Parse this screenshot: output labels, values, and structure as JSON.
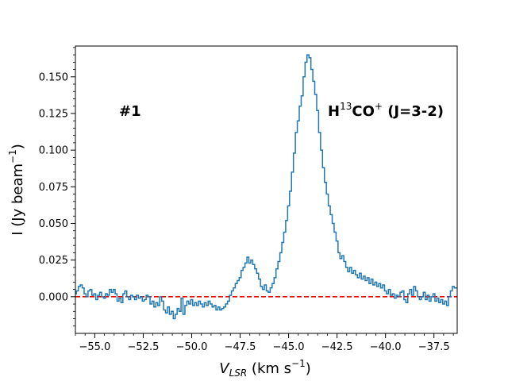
{
  "chart_data": {
    "type": "line",
    "title": "",
    "xlabel": {
      "main": "V",
      "sub": "LSR",
      "rest": " (km s",
      "sup": "−1",
      "end": ")"
    },
    "ylabel": {
      "main": "I (Jy beam",
      "sup": "−1",
      "end": ")"
    },
    "xlim": [
      -56.0,
      -36.3
    ],
    "ylim": [
      -0.025,
      0.171
    ],
    "x_ticks": [
      -55.0,
      -52.5,
      -50.0,
      -47.5,
      -45.0,
      -42.5,
      -40.0,
      -37.5
    ],
    "x_tick_labels": [
      "−55.0",
      "−52.5",
      "−50.0",
      "−47.5",
      "−45.0",
      "−42.5",
      "−40.0",
      "−37.5"
    ],
    "y_ticks": [
      0.0,
      0.025,
      0.05,
      0.075,
      0.1,
      0.125,
      0.15
    ],
    "y_tick_labels": [
      "0.000",
      "0.025",
      "0.050",
      "0.075",
      "0.100",
      "0.125",
      "0.150"
    ],
    "grid": false,
    "annotations": [
      {
        "id": "source",
        "text": "#1"
      },
      {
        "id": "line",
        "main": "H",
        "sup": "13",
        "mid": "CO",
        "sup2": "+",
        "end": " (J=3-2)"
      }
    ],
    "baseline": {
      "y": 0.0,
      "color": "#ff0000",
      "style": "dashed"
    },
    "series": [
      {
        "color": "#1f77b4",
        "style": "steps",
        "points": [
          [
            -56.0,
            0.002
          ],
          [
            -55.9,
            0.004
          ],
          [
            -55.8,
            0.007
          ],
          [
            -55.7,
            0.008
          ],
          [
            -55.6,
            0.006
          ],
          [
            -55.5,
            0.002
          ],
          [
            -55.4,
            0.0
          ],
          [
            -55.3,
            0.004
          ],
          [
            -55.2,
            0.005
          ],
          [
            -55.1,
            0.001
          ],
          [
            -55.0,
            0.002
          ],
          [
            -54.9,
            -0.002
          ],
          [
            -54.8,
            0.001
          ],
          [
            -54.7,
            0.003
          ],
          [
            -54.6,
            0.0
          ],
          [
            -54.5,
            -0.001
          ],
          [
            -54.4,
            0.002
          ],
          [
            -54.3,
            0.001
          ],
          [
            -54.2,
            0.005
          ],
          [
            -54.1,
            0.003
          ],
          [
            -54.0,
            0.005
          ],
          [
            -53.9,
            0.002
          ],
          [
            -53.8,
            -0.003
          ],
          [
            -53.7,
            -0.001
          ],
          [
            -53.6,
            -0.004
          ],
          [
            -53.5,
            0.002
          ],
          [
            -53.4,
            0.004
          ],
          [
            -53.3,
            0.0
          ],
          [
            -53.2,
            -0.002
          ],
          [
            -53.1,
            0.001
          ],
          [
            -53.0,
            0.0
          ],
          [
            -52.9,
            -0.002
          ],
          [
            -52.8,
            0.001
          ],
          [
            -52.7,
            -0.001
          ],
          [
            -52.6,
            0.0
          ],
          [
            -52.5,
            -0.003
          ],
          [
            -52.4,
            -0.002
          ],
          [
            -52.3,
            0.001
          ],
          [
            -52.2,
            0.0
          ],
          [
            -52.1,
            -0.005
          ],
          [
            -52.0,
            -0.003
          ],
          [
            -51.9,
            -0.007
          ],
          [
            -51.8,
            -0.004
          ],
          [
            -51.7,
            -0.006
          ],
          [
            -51.6,
            0.0
          ],
          [
            -51.5,
            -0.003
          ],
          [
            -51.4,
            -0.009
          ],
          [
            -51.3,
            -0.011
          ],
          [
            -51.2,
            -0.007
          ],
          [
            -51.1,
            -0.012
          ],
          [
            -51.0,
            -0.01
          ],
          [
            -50.9,
            -0.015
          ],
          [
            -50.8,
            -0.012
          ],
          [
            -50.7,
            -0.008
          ],
          [
            -50.6,
            -0.01
          ],
          [
            -50.5,
            -0.001
          ],
          [
            -50.4,
            -0.012
          ],
          [
            -50.3,
            -0.006
          ],
          [
            -50.2,
            -0.003
          ],
          [
            -50.1,
            -0.005
          ],
          [
            -50.0,
            -0.002
          ],
          [
            -49.9,
            -0.006
          ],
          [
            -49.8,
            -0.004
          ],
          [
            -49.7,
            -0.006
          ],
          [
            -49.6,
            -0.003
          ],
          [
            -49.5,
            -0.005
          ],
          [
            -49.4,
            -0.007
          ],
          [
            -49.3,
            -0.004
          ],
          [
            -49.2,
            -0.006
          ],
          [
            -49.1,
            -0.003
          ],
          [
            -49.0,
            -0.005
          ],
          [
            -48.9,
            -0.007
          ],
          [
            -48.8,
            -0.006
          ],
          [
            -48.7,
            -0.009
          ],
          [
            -48.6,
            -0.007
          ],
          [
            -48.5,
            -0.009
          ],
          [
            -48.4,
            -0.008
          ],
          [
            -48.3,
            -0.007
          ],
          [
            -48.2,
            -0.005
          ],
          [
            -48.1,
            -0.003
          ],
          [
            -48.0,
            0.001
          ],
          [
            -47.9,
            0.004
          ],
          [
            -47.8,
            0.006
          ],
          [
            -47.7,
            0.009
          ],
          [
            -47.6,
            0.011
          ],
          [
            -47.5,
            0.013
          ],
          [
            -47.4,
            0.018
          ],
          [
            -47.3,
            0.02
          ],
          [
            -47.2,
            0.023
          ],
          [
            -47.1,
            0.027
          ],
          [
            -47.0,
            0.023
          ],
          [
            -46.9,
            0.025
          ],
          [
            -46.8,
            0.022
          ],
          [
            -46.7,
            0.019
          ],
          [
            -46.6,
            0.016
          ],
          [
            -46.5,
            0.012
          ],
          [
            -46.4,
            0.007
          ],
          [
            -46.3,
            0.005
          ],
          [
            -46.2,
            0.008
          ],
          [
            -46.1,
            0.004
          ],
          [
            -46.0,
            0.003
          ],
          [
            -45.9,
            0.006
          ],
          [
            -45.8,
            0.009
          ],
          [
            -45.7,
            0.013
          ],
          [
            -45.6,
            0.019
          ],
          [
            -45.5,
            0.024
          ],
          [
            -45.4,
            0.03
          ],
          [
            -45.3,
            0.037
          ],
          [
            -45.2,
            0.044
          ],
          [
            -45.1,
            0.052
          ],
          [
            -45.0,
            0.062
          ],
          [
            -44.9,
            0.072
          ],
          [
            -44.8,
            0.085
          ],
          [
            -44.7,
            0.098
          ],
          [
            -44.6,
            0.112
          ],
          [
            -44.5,
            0.12
          ],
          [
            -44.4,
            0.13
          ],
          [
            -44.3,
            0.137
          ],
          [
            -44.2,
            0.15
          ],
          [
            -44.1,
            0.16
          ],
          [
            -44.0,
            0.165
          ],
          [
            -43.9,
            0.163
          ],
          [
            -43.8,
            0.155
          ],
          [
            -43.7,
            0.147
          ],
          [
            -43.6,
            0.138
          ],
          [
            -43.5,
            0.127
          ],
          [
            -43.4,
            0.112
          ],
          [
            -43.3,
            0.1
          ],
          [
            -43.2,
            0.088
          ],
          [
            -43.1,
            0.078
          ],
          [
            -43.0,
            0.07
          ],
          [
            -42.9,
            0.062
          ],
          [
            -42.8,
            0.056
          ],
          [
            -42.7,
            0.05
          ],
          [
            -42.6,
            0.044
          ],
          [
            -42.5,
            0.038
          ],
          [
            -42.4,
            0.03
          ],
          [
            -42.3,
            0.026
          ],
          [
            -42.2,
            0.028
          ],
          [
            -42.1,
            0.024
          ],
          [
            -42.0,
            0.02
          ],
          [
            -41.9,
            0.017
          ],
          [
            -41.8,
            0.02
          ],
          [
            -41.7,
            0.016
          ],
          [
            -41.6,
            0.018
          ],
          [
            -41.5,
            0.015
          ],
          [
            -41.4,
            0.013
          ],
          [
            -41.3,
            0.016
          ],
          [
            -41.2,
            0.012
          ],
          [
            -41.1,
            0.014
          ],
          [
            -41.0,
            0.011
          ],
          [
            -40.9,
            0.013
          ],
          [
            -40.8,
            0.009
          ],
          [
            -40.7,
            0.012
          ],
          [
            -40.6,
            0.008
          ],
          [
            -40.5,
            0.01
          ],
          [
            -40.4,
            0.007
          ],
          [
            -40.3,
            0.009
          ],
          [
            -40.2,
            0.006
          ],
          [
            -40.1,
            0.008
          ],
          [
            -40.0,
            0.004
          ],
          [
            -39.9,
            0.002
          ],
          [
            -39.8,
            0.005
          ],
          [
            -39.7,
            0.001
          ],
          [
            -39.6,
            0.002
          ],
          [
            -39.5,
            -0.001
          ],
          [
            -39.4,
            0.001
          ],
          [
            -39.3,
            0.0
          ],
          [
            -39.2,
            0.003
          ],
          [
            -39.1,
            0.004
          ],
          [
            -39.0,
            -0.002
          ],
          [
            -38.9,
            -0.004
          ],
          [
            -38.8,
            0.002
          ],
          [
            -38.7,
            0.005
          ],
          [
            -38.6,
            0.001
          ],
          [
            -38.5,
            0.007
          ],
          [
            -38.4,
            0.004
          ],
          [
            -38.3,
            0.0
          ],
          [
            -38.2,
            -0.002
          ],
          [
            -38.1,
            0.0
          ],
          [
            -38.0,
            0.003
          ],
          [
            -37.9,
            -0.002
          ],
          [
            -37.8,
            0.001
          ],
          [
            -37.7,
            -0.003
          ],
          [
            -37.6,
            0.0
          ],
          [
            -37.5,
            0.002
          ],
          [
            -37.4,
            -0.003
          ],
          [
            -37.3,
            -0.001
          ],
          [
            -37.2,
            -0.004
          ],
          [
            -37.1,
            -0.002
          ],
          [
            -37.0,
            -0.005
          ],
          [
            -36.9,
            -0.003
          ],
          [
            -36.8,
            -0.006
          ],
          [
            -36.7,
            0.0
          ],
          [
            -36.6,
            0.004
          ],
          [
            -36.5,
            0.007
          ],
          [
            -36.4,
            0.006
          ],
          [
            -36.3,
            0.006
          ]
        ]
      }
    ]
  }
}
